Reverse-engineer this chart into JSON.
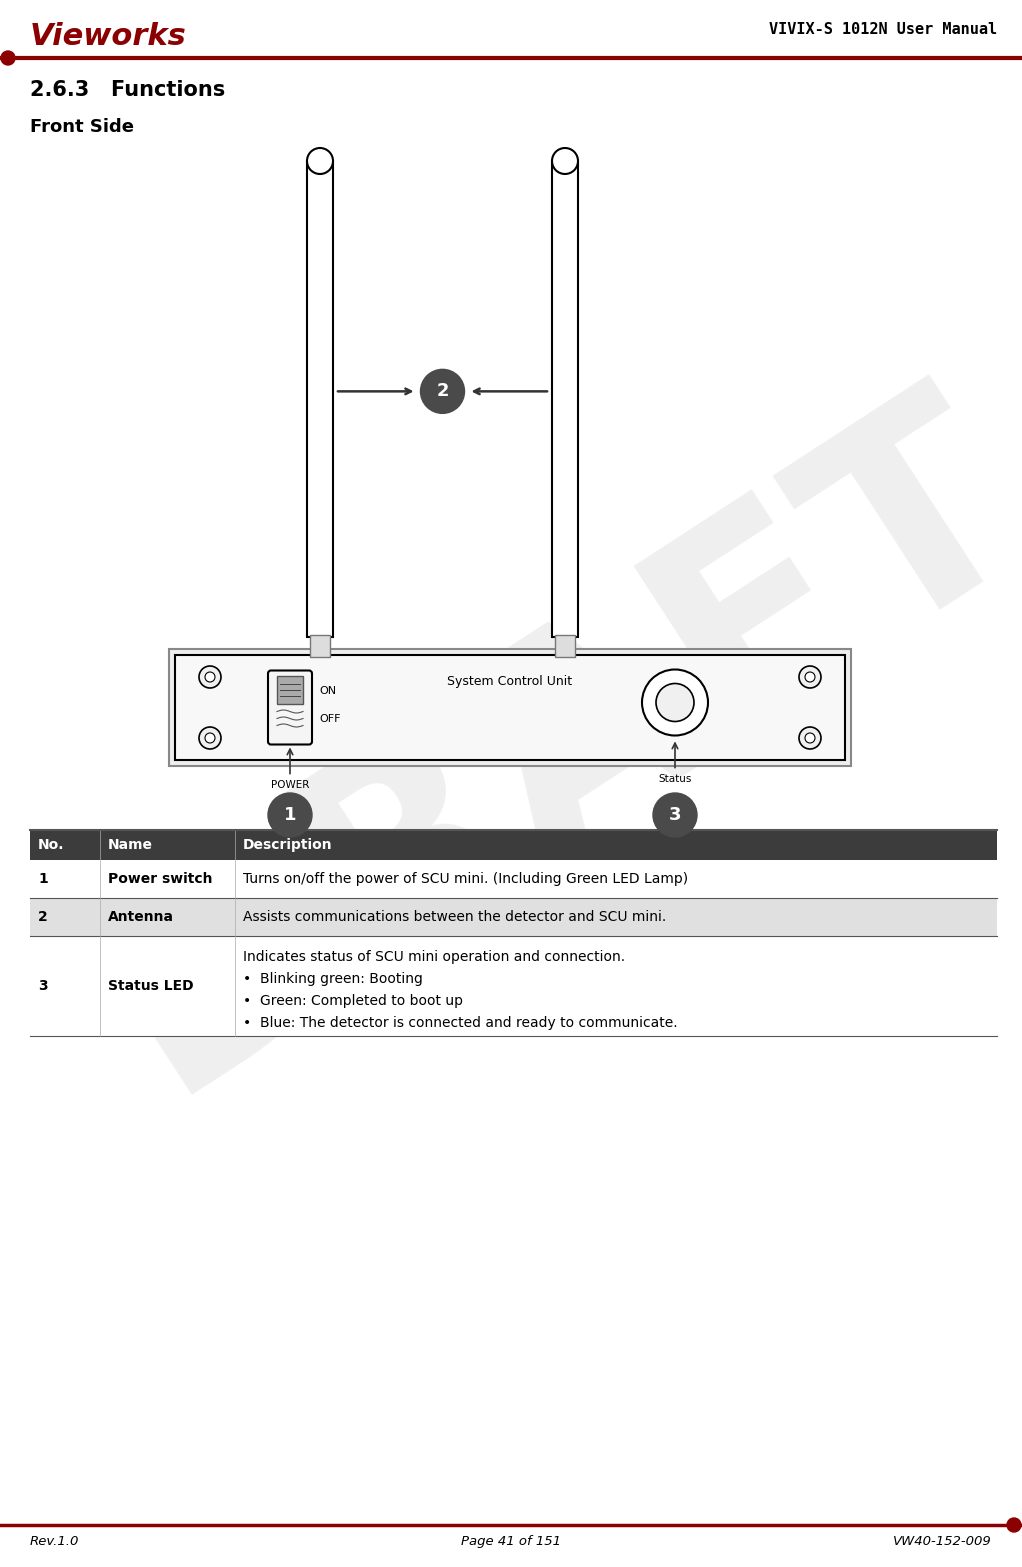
{
  "page_title_right": "VIVIX-S 1012N User Manual",
  "logo_text": "Vieworks",
  "section_title": "2.6.3   Functions",
  "subsection_title": "Front Side",
  "footer_left": "Rev.1.0",
  "footer_center": "Page 41 of 151",
  "footer_right": "VW40-152-009",
  "table_headers": [
    "No.",
    "Name",
    "Description"
  ],
  "table_rows": [
    [
      "1",
      "Power switch",
      "Turns on/off the power of SCU mini. (Including Green LED Lamp)"
    ],
    [
      "2",
      "Antenna",
      "Assists communications between the detector and SCU mini."
    ],
    [
      "3",
      "Status LED",
      "Indicates status of SCU mini operation and connection.\n•  Blinking green: Booting\n•  Green: Completed to boot up\n•  Blue: The detector is connected and ready to communicate."
    ]
  ],
  "accent_color": "#8B0000",
  "draft_color": "#C8C8C8",
  "header_bg": "#3C3C3C",
  "table_line_color": "#555555",
  "row_alt_color": "#E0E0E0"
}
